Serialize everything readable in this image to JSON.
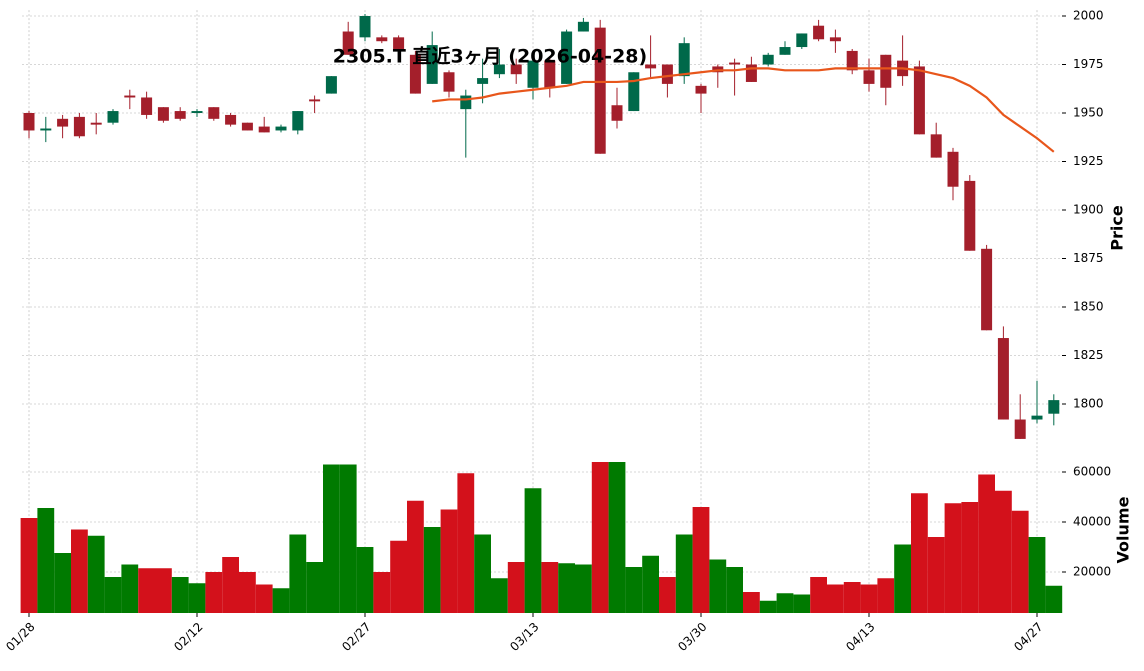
{
  "chart_data": {
    "type": "candlestick",
    "title": "2305.T 直近3ヶ月 (2026-04-28)",
    "ylabel": "Price",
    "volume_label": "Volume",
    "categories": [
      "01/28",
      null,
      null,
      null,
      null,
      null,
      null,
      null,
      null,
      null,
      "02/12",
      null,
      null,
      null,
      null,
      null,
      null,
      null,
      null,
      null,
      "02/27",
      null,
      null,
      null,
      null,
      null,
      null,
      null,
      null,
      null,
      "03/13",
      null,
      null,
      null,
      null,
      null,
      null,
      null,
      null,
      null,
      "03/30",
      null,
      null,
      null,
      null,
      null,
      null,
      null,
      null,
      null,
      "04/13",
      null,
      null,
      null,
      null,
      null,
      null,
      null,
      null,
      null,
      "04/27",
      null
    ],
    "open": [
      1950,
      1941,
      1947,
      1948,
      1945,
      1945,
      1959,
      1958,
      1953,
      1951,
      1950,
      1953,
      1949,
      1945,
      1943,
      1941,
      1941,
      1957,
      1960,
      1992,
      1989,
      1989,
      1989,
      1980,
      1965,
      1971,
      1952,
      1965,
      1970,
      1975,
      1963,
      1977,
      1965,
      1992,
      1994,
      1954,
      1951,
      1975,
      1975,
      1969,
      1964,
      1974,
      1976,
      1975,
      1975,
      1980,
      1984,
      1995,
      1989,
      1982,
      1972,
      1980,
      1977,
      1974,
      1939,
      1930,
      1915,
      1880,
      1834,
      1792,
      1792,
      1795
    ],
    "high": [
      1951,
      1948,
      1949,
      1950,
      1950,
      1952,
      1962,
      1961,
      1953,
      1953,
      1952,
      1953,
      1950,
      1945,
      1948,
      1944,
      1951,
      1959,
      1969,
      1997,
      2001,
      1990,
      1990,
      1982,
      1992,
      1972,
      1962,
      1978,
      1983,
      1978,
      1980,
      1978,
      1993,
      1999,
      1998,
      1963,
      1971,
      1990,
      1975,
      1989,
      1965,
      1975,
      1978,
      1979,
      1981,
      1987,
      1991,
      1998,
      1993,
      1983,
      1978,
      1980,
      1990,
      1977,
      1945,
      1932,
      1918,
      1882,
      1840,
      1805,
      1812,
      1805
    ],
    "low": [
      1937,
      1935,
      1937,
      1937,
      1939,
      1944,
      1952,
      1947,
      1945,
      1946,
      1948,
      1946,
      1943,
      1941,
      1940,
      1940,
      1939,
      1950,
      1960,
      1980,
      1987,
      1986,
      1980,
      1960,
      1965,
      1958,
      1927,
      1955,
      1968,
      1965,
      1957,
      1958,
      1965,
      1992,
      1929,
      1942,
      1951,
      1968,
      1958,
      1965,
      1950,
      1963,
      1959,
      1966,
      1974,
      1980,
      1983,
      1987,
      1981,
      1970,
      1961,
      1954,
      1964,
      1939,
      1927,
      1905,
      1879,
      1838,
      1792,
      1782,
      1790,
      1789
    ],
    "close": [
      1941,
      1942,
      1943,
      1938,
      1944,
      1951,
      1958,
      1949,
      1946,
      1947,
      1951,
      1947,
      1944,
      1941,
      1940,
      1943,
      1951,
      1956,
      1969,
      1980,
      2000,
      1987,
      1983,
      1960,
      1985,
      1961,
      1959,
      1968,
      1975,
      1970,
      1977,
      1963,
      1992,
      1997,
      1929,
      1946,
      1971,
      1973,
      1965,
      1986,
      1960,
      1971,
      1975,
      1966,
      1980,
      1984,
      1991,
      1988,
      1987,
      1972,
      1965,
      1963,
      1969,
      1939,
      1927,
      1912,
      1879,
      1838,
      1792,
      1782,
      1794,
      1802
    ],
    "up_color": "#00694a",
    "down_color": "#a41f2b",
    "ma_color": "#e8561b",
    "ma_values": [
      null,
      null,
      null,
      null,
      null,
      null,
      null,
      null,
      null,
      null,
      null,
      null,
      null,
      null,
      null,
      null,
      null,
      null,
      null,
      null,
      null,
      null,
      null,
      null,
      1956,
      1957,
      1957,
      1958,
      1960,
      1961,
      1962,
      1963,
      1964,
      1966,
      1966,
      1966,
      1966.5,
      1968,
      1969,
      1970,
      1971,
      1972,
      1972,
      1973,
      1973,
      1972,
      1972,
      1972,
      1973,
      1973,
      1973,
      1973,
      1973,
      1972,
      1970,
      1968,
      1964,
      1958,
      1949,
      1943,
      1937,
      1930
    ],
    "volume": [
      41600,
      45600,
      27600,
      37000,
      34500,
      18000,
      23000,
      21500,
      21500,
      18000,
      15500,
      20000,
      26000,
      20000,
      15000,
      13500,
      35000,
      24000,
      63000,
      63000,
      30000,
      20000,
      32500,
      48500,
      38000,
      45000,
      59500,
      35000,
      17500,
      24000,
      53500,
      24000,
      23500,
      23000,
      64000,
      64000,
      22000,
      26500,
      18000,
      35000,
      46000,
      25000,
      22000,
      12000,
      8500,
      11500,
      11000,
      18000,
      15000,
      16000,
      15000,
      17500,
      31000,
      51500,
      34000,
      47500,
      48000,
      59000,
      52500,
      44500,
      34000,
      14500
    ],
    "volume_up_color": "#007a00",
    "volume_down_color": "#d3111b",
    "ylim": [
      1778,
      2003
    ],
    "yticks": [
      1800,
      1825,
      1850,
      1875,
      1900,
      1925,
      1950,
      1975,
      2000
    ],
    "volume_ylim": [
      3600,
      70000
    ],
    "volume_yticks": [
      20000,
      40000,
      60000
    ],
    "grid": true
  }
}
